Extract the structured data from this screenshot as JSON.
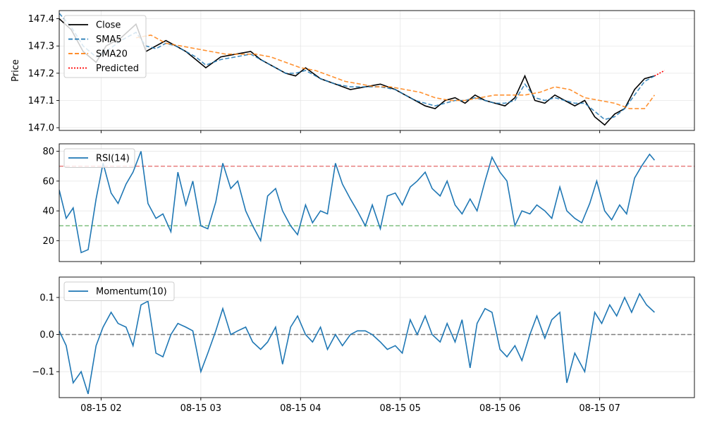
{
  "chart_data": [
    {
      "type": "line",
      "ylabel": "Price",
      "ylim": [
        146.99,
        147.43
      ],
      "yticks": [
        147.0,
        147.1,
        147.2,
        147.3,
        147.4
      ],
      "ytick_labels": [
        "147.0",
        "147.1",
        "147.2",
        "147.3",
        "147.4"
      ],
      "grid": true,
      "legend_placement": "upper-left",
      "series": [
        {
          "name": "Close",
          "color": "#000000",
          "style": "solid",
          "x": [
            1.58,
            1.7,
            1.82,
            1.95,
            2.05,
            2.2,
            2.35,
            2.45,
            2.55,
            2.65,
            2.75,
            2.85,
            2.95,
            3.05,
            3.2,
            3.35,
            3.5,
            3.6,
            3.75,
            3.85,
            3.95,
            4.05,
            4.2,
            4.35,
            4.5,
            4.65,
            4.8,
            4.95,
            5.05,
            5.15,
            5.25,
            5.35,
            5.45,
            5.55,
            5.65,
            5.75,
            5.85,
            5.95,
            6.05,
            6.15,
            6.25,
            6.35,
            6.45,
            6.55,
            6.65,
            6.75,
            6.85,
            6.95,
            7.05,
            7.15,
            7.25,
            7.35,
            7.45,
            7.55
          ],
          "y": [
            147.4,
            147.36,
            147.28,
            147.24,
            147.3,
            147.33,
            147.38,
            147.28,
            147.3,
            147.32,
            147.3,
            147.28,
            147.25,
            147.22,
            147.26,
            147.27,
            147.28,
            147.25,
            147.22,
            147.2,
            147.19,
            147.22,
            147.18,
            147.16,
            147.14,
            147.15,
            147.16,
            147.14,
            147.12,
            147.1,
            147.08,
            147.07,
            147.1,
            147.11,
            147.09,
            147.12,
            147.1,
            147.09,
            147.08,
            147.11,
            147.19,
            147.1,
            147.09,
            147.12,
            147.1,
            147.08,
            147.1,
            147.04,
            147.01,
            147.05,
            147.07,
            147.14,
            147.18,
            147.19
          ]
        },
        {
          "name": "SMA5",
          "color": "#1f77b4",
          "style": "dashed",
          "x": [
            1.58,
            1.7,
            1.82,
            1.95,
            2.05,
            2.2,
            2.35,
            2.45,
            2.55,
            2.65,
            2.75,
            2.85,
            2.95,
            3.05,
            3.2,
            3.35,
            3.5,
            3.6,
            3.75,
            3.85,
            3.95,
            4.05,
            4.2,
            4.35,
            4.5,
            4.65,
            4.8,
            4.95,
            5.05,
            5.15,
            5.25,
            5.35,
            5.45,
            5.55,
            5.65,
            5.75,
            5.85,
            5.95,
            6.05,
            6.15,
            6.25,
            6.35,
            6.45,
            6.55,
            6.65,
            6.75,
            6.85,
            6.95,
            7.05,
            7.15,
            7.25,
            7.35,
            7.45,
            7.55
          ],
          "y": [
            147.42,
            147.37,
            147.3,
            147.26,
            147.28,
            147.32,
            147.35,
            147.3,
            147.29,
            147.31,
            147.3,
            147.28,
            147.26,
            147.23,
            147.25,
            147.26,
            147.27,
            147.25,
            147.22,
            147.2,
            147.2,
            147.21,
            147.18,
            147.16,
            147.15,
            147.15,
            147.15,
            147.14,
            147.12,
            147.1,
            147.09,
            147.08,
            147.09,
            147.1,
            147.1,
            147.11,
            147.1,
            147.09,
            147.09,
            147.1,
            147.16,
            147.11,
            147.1,
            147.11,
            147.1,
            147.09,
            147.09,
            147.06,
            147.03,
            147.04,
            147.07,
            147.12,
            147.17,
            147.19
          ]
        },
        {
          "name": "SMA20",
          "color": "#ff7f0e",
          "style": "dashed",
          "x": [
            2.35,
            2.5,
            2.65,
            2.8,
            2.95,
            3.1,
            3.25,
            3.4,
            3.55,
            3.7,
            3.85,
            4.0,
            4.15,
            4.3,
            4.45,
            4.6,
            4.75,
            4.9,
            5.05,
            5.2,
            5.35,
            5.5,
            5.65,
            5.8,
            5.95,
            6.1,
            6.25,
            6.4,
            6.55,
            6.7,
            6.85,
            7.0,
            7.15,
            7.3,
            7.45,
            7.55
          ],
          "y": [
            147.33,
            147.34,
            147.31,
            147.3,
            147.29,
            147.28,
            147.27,
            147.27,
            147.27,
            147.26,
            147.24,
            147.22,
            147.21,
            147.19,
            147.17,
            147.16,
            147.15,
            147.15,
            147.14,
            147.13,
            147.11,
            147.1,
            147.1,
            147.11,
            147.12,
            147.12,
            147.12,
            147.13,
            147.15,
            147.14,
            147.11,
            147.1,
            147.09,
            147.07,
            147.07,
            147.12
          ]
        },
        {
          "name": "Predicted",
          "color": "#ff0000",
          "style": "dotted",
          "x": [
            7.55,
            7.6,
            7.65
          ],
          "y": [
            147.19,
            147.2,
            147.21
          ]
        }
      ]
    },
    {
      "type": "line",
      "ylim": [
        6,
        85
      ],
      "yticks": [
        20,
        40,
        60,
        80
      ],
      "ytick_labels": [
        "20",
        "40",
        "60",
        "80"
      ],
      "grid": true,
      "legend_placement": "upper-left",
      "reference_lines": [
        {
          "y": 70,
          "color": "#e88080"
        },
        {
          "y": 30,
          "color": "#80c080"
        }
      ],
      "series": [
        {
          "name": "RSI(14)",
          "color": "#1f77b4",
          "x": [
            1.58,
            1.65,
            1.72,
            1.8,
            1.87,
            1.95,
            2.02,
            2.1,
            2.17,
            2.25,
            2.32,
            2.4,
            2.47,
            2.55,
            2.62,
            2.7,
            2.77,
            2.85,
            2.92,
            3.0,
            3.07,
            3.15,
            3.22,
            3.3,
            3.37,
            3.45,
            3.52,
            3.6,
            3.67,
            3.75,
            3.82,
            3.9,
            3.97,
            4.05,
            4.12,
            4.2,
            4.27,
            4.35,
            4.42,
            4.5,
            4.57,
            4.65,
            4.72,
            4.8,
            4.87,
            4.95,
            5.02,
            5.1,
            5.17,
            5.25,
            5.32,
            5.4,
            5.47,
            5.55,
            5.62,
            5.7,
            5.77,
            5.85,
            5.92,
            6.0,
            6.07,
            6.15,
            6.22,
            6.3,
            6.37,
            6.45,
            6.52,
            6.6,
            6.67,
            6.75,
            6.82,
            6.9,
            6.97,
            7.05,
            7.12,
            7.2,
            7.27,
            7.35,
            7.42,
            7.5,
            7.55
          ],
          "y": [
            54,
            35,
            42,
            12,
            14,
            48,
            72,
            52,
            45,
            58,
            66,
            80,
            45,
            35,
            38,
            26,
            66,
            44,
            60,
            30,
            28,
            46,
            72,
            55,
            60,
            40,
            30,
            20,
            50,
            55,
            40,
            30,
            24,
            44,
            32,
            40,
            38,
            72,
            58,
            48,
            40,
            30,
            44,
            28,
            50,
            52,
            44,
            56,
            60,
            66,
            55,
            50,
            60,
            44,
            38,
            48,
            40,
            60,
            76,
            66,
            60,
            30,
            40,
            38,
            44,
            40,
            35,
            56,
            40,
            35,
            32,
            45,
            60,
            40,
            34,
            44,
            38,
            62,
            70,
            78,
            74
          ]
        }
      ]
    },
    {
      "type": "line",
      "ylim": [
        -0.17,
        0.155
      ],
      "yticks": [
        -0.1,
        0.0,
        0.1
      ],
      "ytick_labels": [
        "−0.1",
        "0.0",
        "0.1"
      ],
      "grid": true,
      "legend_placement": "upper-left",
      "reference_lines": [
        {
          "y": 0,
          "color": "#808080"
        }
      ],
      "series": [
        {
          "name": "Momentum(10)",
          "color": "#1f77b4",
          "x": [
            1.58,
            1.65,
            1.72,
            1.8,
            1.87,
            1.95,
            2.02,
            2.1,
            2.17,
            2.25,
            2.32,
            2.4,
            2.47,
            2.55,
            2.62,
            2.7,
            2.77,
            2.85,
            2.92,
            3.0,
            3.07,
            3.15,
            3.22,
            3.3,
            3.37,
            3.45,
            3.52,
            3.6,
            3.67,
            3.75,
            3.82,
            3.9,
            3.97,
            4.05,
            4.12,
            4.2,
            4.27,
            4.35,
            4.42,
            4.5,
            4.57,
            4.65,
            4.72,
            4.8,
            4.87,
            4.95,
            5.02,
            5.1,
            5.17,
            5.25,
            5.32,
            5.4,
            5.47,
            5.55,
            5.62,
            5.7,
            5.77,
            5.85,
            5.92,
            6.0,
            6.07,
            6.15,
            6.22,
            6.3,
            6.37,
            6.45,
            6.52,
            6.6,
            6.67,
            6.75,
            6.85,
            6.95,
            7.02,
            7.1,
            7.17,
            7.25,
            7.32,
            7.4,
            7.47,
            7.55
          ],
          "y": [
            0.01,
            -0.03,
            -0.13,
            -0.1,
            -0.16,
            -0.03,
            0.02,
            0.06,
            0.03,
            0.02,
            -0.03,
            0.08,
            0.09,
            -0.05,
            -0.06,
            0.0,
            0.03,
            0.02,
            0.01,
            -0.1,
            -0.05,
            0.01,
            0.07,
            0.0,
            0.01,
            0.02,
            -0.02,
            -0.04,
            -0.02,
            0.02,
            -0.08,
            0.02,
            0.05,
            0.0,
            -0.02,
            0.02,
            -0.04,
            0.0,
            -0.03,
            0.0,
            0.01,
            0.01,
            0.0,
            -0.02,
            -0.04,
            -0.03,
            -0.05,
            0.04,
            0.0,
            0.05,
            0.0,
            -0.02,
            0.03,
            -0.02,
            0.04,
            -0.09,
            0.03,
            0.07,
            0.06,
            -0.04,
            -0.06,
            -0.03,
            -0.07,
            0.0,
            0.05,
            -0.01,
            0.04,
            0.06,
            -0.13,
            -0.05,
            -0.1,
            0.06,
            0.03,
            0.08,
            0.05,
            0.1,
            0.06,
            0.11,
            0.08,
            0.06
          ]
        }
      ]
    }
  ],
  "x_axis": {
    "xlim": [
      1.58,
      7.95
    ],
    "ticks": [
      2,
      3,
      4,
      5,
      6,
      7
    ],
    "tick_labels": [
      "08-15 02",
      "08-15 03",
      "08-15 04",
      "08-15 05",
      "08-15 06",
      "08-15 07"
    ]
  }
}
